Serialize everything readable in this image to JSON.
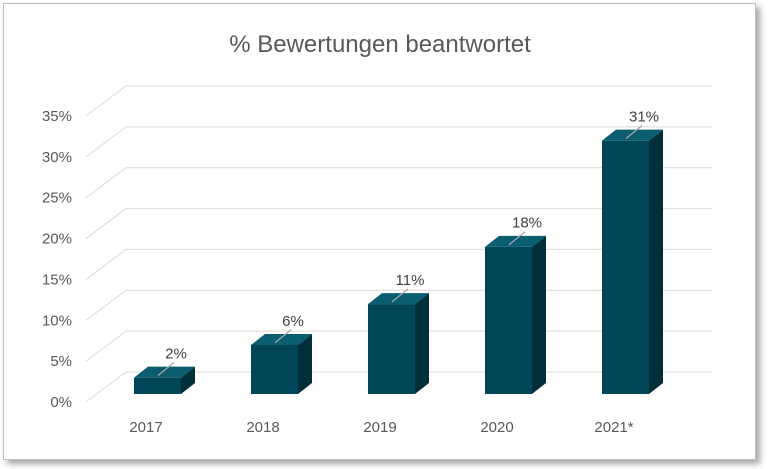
{
  "chart_data": {
    "type": "bar",
    "style": "3d-column",
    "title": "% Bewertungen beantwortet",
    "categories": [
      "2017",
      "2018",
      "2019",
      "2020",
      "2021*"
    ],
    "series": [
      {
        "values": [
          2,
          6,
          11,
          18,
          31
        ],
        "data_labels": [
          "2%",
          "6%",
          "11%",
          "18%",
          "31%"
        ]
      }
    ],
    "y_ticks": [
      {
        "value": 0,
        "label": "0%"
      },
      {
        "value": 5,
        "label": "5%"
      },
      {
        "value": 10,
        "label": "10%"
      },
      {
        "value": 15,
        "label": "15%"
      },
      {
        "value": 20,
        "label": "20%"
      },
      {
        "value": 25,
        "label": "25%"
      },
      {
        "value": 30,
        "label": "30%"
      },
      {
        "value": 35,
        "label": "35%"
      }
    ],
    "ylim": [
      0,
      35
    ],
    "grid": true,
    "legend": "none",
    "colors": {
      "front": "#004657",
      "side": "#002e39",
      "top": "#0b5d70",
      "grid": "#d9d9d9",
      "leader": "#a6a6a6"
    }
  }
}
